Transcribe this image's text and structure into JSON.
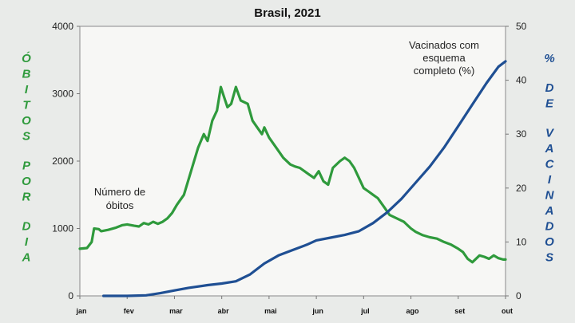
{
  "chart_data": {
    "type": "line",
    "title": "Brasil, 2021",
    "x_categories": [
      "jan",
      "fev",
      "mar",
      "abr",
      "mai",
      "jun",
      "jul",
      "ago",
      "set",
      "out"
    ],
    "y_left": {
      "label": "ÓBITOS POR DIA",
      "range": [
        0,
        4000
      ],
      "ticks": [
        "0",
        "1000",
        "2000",
        "3000",
        "4000"
      ]
    },
    "y_right": {
      "label": "% DE VACINADOS",
      "range": [
        0,
        50
      ],
      "ticks": [
        "0",
        "10",
        "20",
        "30",
        "40",
        "50"
      ]
    },
    "grid": false,
    "series": [
      {
        "name": "Número de óbitos",
        "axis": "left",
        "color": "#2f9a3c",
        "points": [
          [
            0.0,
            700
          ],
          [
            0.15,
            710
          ],
          [
            0.25,
            800
          ],
          [
            0.3,
            1000
          ],
          [
            0.4,
            990
          ],
          [
            0.45,
            960
          ],
          [
            0.6,
            980
          ],
          [
            0.75,
            1010
          ],
          [
            0.9,
            1050
          ],
          [
            1.0,
            1060
          ],
          [
            1.15,
            1040
          ],
          [
            1.25,
            1030
          ],
          [
            1.35,
            1080
          ],
          [
            1.45,
            1060
          ],
          [
            1.55,
            1100
          ],
          [
            1.65,
            1070
          ],
          [
            1.75,
            1100
          ],
          [
            1.85,
            1150
          ],
          [
            1.95,
            1230
          ],
          [
            2.05,
            1350
          ],
          [
            2.2,
            1500
          ],
          [
            2.35,
            1850
          ],
          [
            2.5,
            2200
          ],
          [
            2.62,
            2400
          ],
          [
            2.7,
            2300
          ],
          [
            2.8,
            2600
          ],
          [
            2.9,
            2750
          ],
          [
            2.98,
            3100
          ],
          [
            3.05,
            2950
          ],
          [
            3.12,
            2800
          ],
          [
            3.2,
            2850
          ],
          [
            3.3,
            3100
          ],
          [
            3.4,
            2900
          ],
          [
            3.55,
            2850
          ],
          [
            3.65,
            2600
          ],
          [
            3.75,
            2500
          ],
          [
            3.85,
            2400
          ],
          [
            3.9,
            2500
          ],
          [
            4.0,
            2350
          ],
          [
            4.15,
            2200
          ],
          [
            4.3,
            2050
          ],
          [
            4.45,
            1950
          ],
          [
            4.55,
            1920
          ],
          [
            4.65,
            1900
          ],
          [
            4.75,
            1850
          ],
          [
            4.85,
            1800
          ],
          [
            4.95,
            1750
          ],
          [
            5.05,
            1850
          ],
          [
            5.15,
            1700
          ],
          [
            5.25,
            1650
          ],
          [
            5.35,
            1900
          ],
          [
            5.5,
            2000
          ],
          [
            5.6,
            2050
          ],
          [
            5.7,
            2000
          ],
          [
            5.8,
            1900
          ],
          [
            5.9,
            1750
          ],
          [
            6.0,
            1600
          ],
          [
            6.1,
            1550
          ],
          [
            6.2,
            1500
          ],
          [
            6.3,
            1450
          ],
          [
            6.45,
            1300
          ],
          [
            6.55,
            1200
          ],
          [
            6.7,
            1150
          ],
          [
            6.85,
            1100
          ],
          [
            7.0,
            1000
          ],
          [
            7.1,
            950
          ],
          [
            7.25,
            900
          ],
          [
            7.4,
            870
          ],
          [
            7.55,
            850
          ],
          [
            7.7,
            800
          ],
          [
            7.85,
            760
          ],
          [
            8.0,
            700
          ],
          [
            8.1,
            650
          ],
          [
            8.2,
            550
          ],
          [
            8.3,
            500
          ],
          [
            8.45,
            600
          ],
          [
            8.55,
            580
          ],
          [
            8.65,
            550
          ],
          [
            8.75,
            600
          ],
          [
            8.85,
            560
          ],
          [
            8.95,
            540
          ],
          [
            9.0,
            540
          ]
        ]
      },
      {
        "name": "Vacinados com esquema completo (%)",
        "axis": "right",
        "color": "#1f4f93",
        "points": [
          [
            0.5,
            0
          ],
          [
            1.0,
            0
          ],
          [
            1.4,
            0.1
          ],
          [
            1.7,
            0.5
          ],
          [
            2.0,
            1.0
          ],
          [
            2.3,
            1.5
          ],
          [
            2.7,
            2.0
          ],
          [
            3.0,
            2.3
          ],
          [
            3.3,
            2.7
          ],
          [
            3.6,
            4.0
          ],
          [
            3.9,
            6.0
          ],
          [
            4.2,
            7.5
          ],
          [
            4.5,
            8.5
          ],
          [
            4.8,
            9.5
          ],
          [
            5.0,
            10.3
          ],
          [
            5.3,
            10.8
          ],
          [
            5.6,
            11.3
          ],
          [
            5.9,
            12.0
          ],
          [
            6.2,
            13.5
          ],
          [
            6.5,
            15.5
          ],
          [
            6.8,
            18.0
          ],
          [
            7.1,
            21.0
          ],
          [
            7.4,
            24.0
          ],
          [
            7.7,
            27.5
          ],
          [
            8.0,
            31.5
          ],
          [
            8.3,
            35.5
          ],
          [
            8.6,
            39.5
          ],
          [
            8.85,
            42.5
          ],
          [
            9.0,
            43.5
          ]
        ]
      }
    ],
    "annotations": [
      {
        "series": 0,
        "lines": [
          "Número de",
          "óbitos"
        ]
      },
      {
        "series": 1,
        "lines": [
          "Vacinados com",
          "esquema",
          "completo  (%)"
        ]
      }
    ]
  }
}
